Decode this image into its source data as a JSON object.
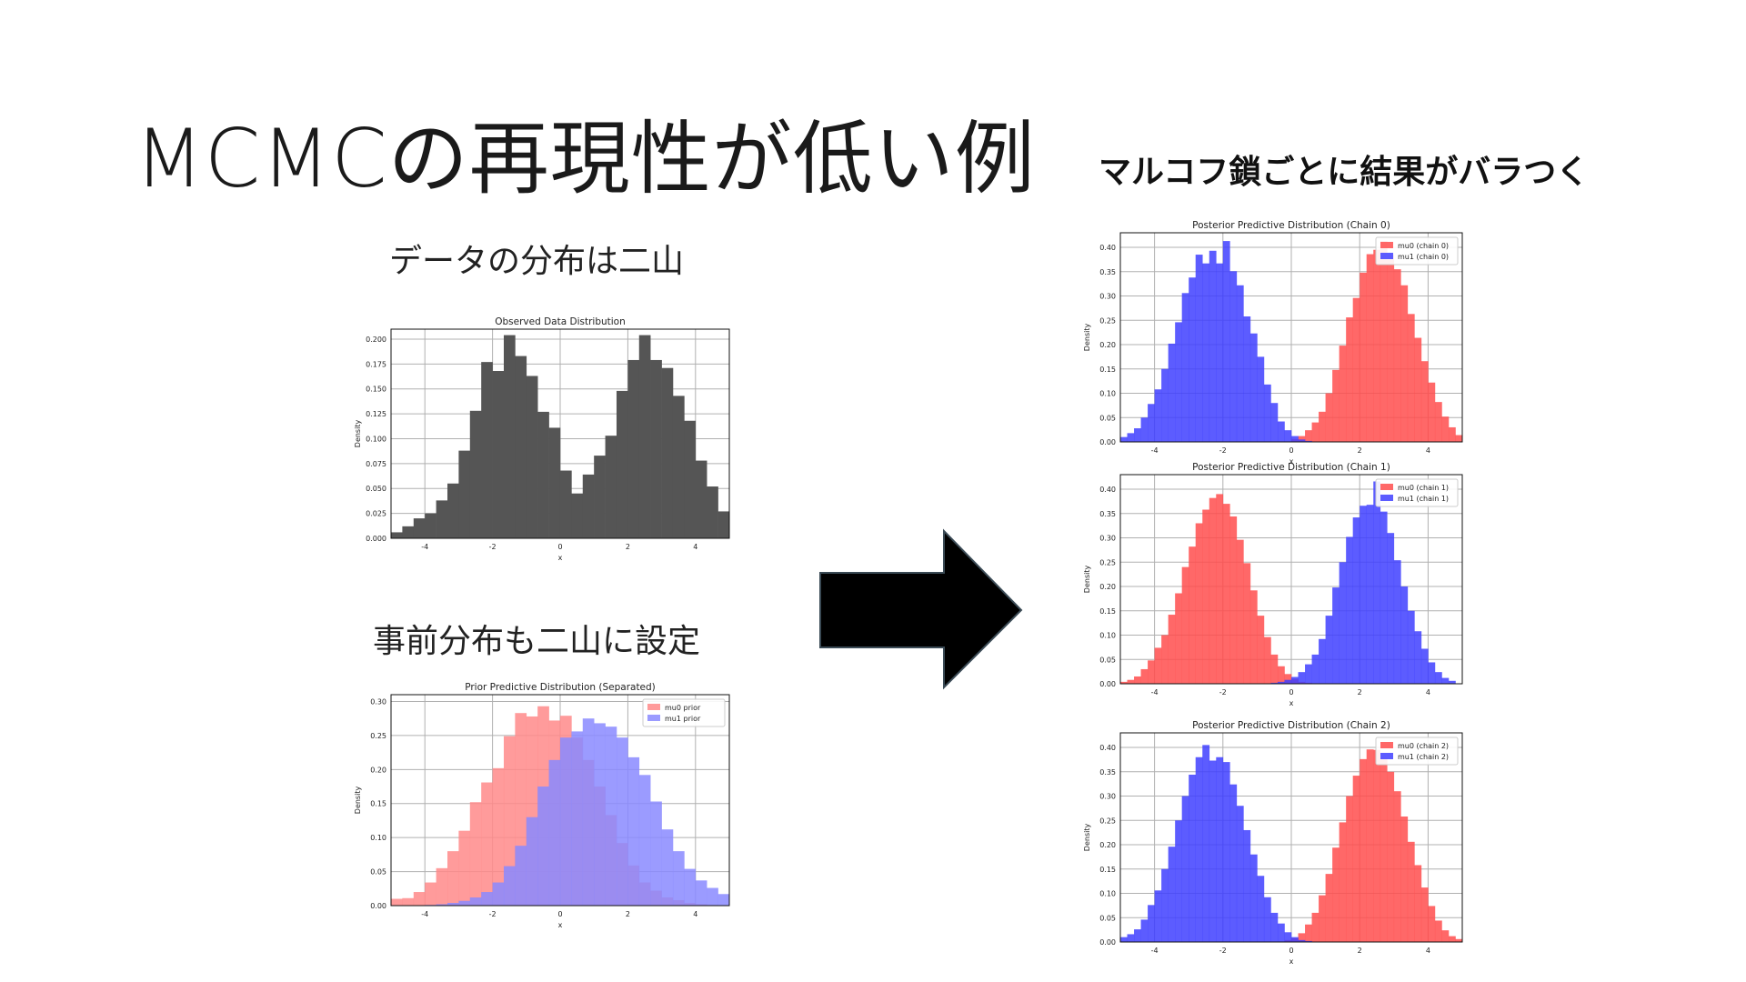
{
  "slide": {
    "title": "MCMCの再現性が低い例",
    "data_caption": "データの分布は二山",
    "prior_caption": "事前分布も二山に設定",
    "result_caption": "マルコフ鎖ごとに結果がバラつく"
  },
  "colors": {
    "data": "#555555",
    "red": "#ff4d4d",
    "blue": "#4040ff",
    "red_light": "#ff8a8a",
    "blue_light": "#8a8aff",
    "arrow": "#000000"
  },
  "chart_data": [
    {
      "id": "observed",
      "type": "bar",
      "title": "Observed Data Distribution",
      "xlabel": "x",
      "ylabel": "Density",
      "xlim": [
        -5,
        5
      ],
      "ylim": [
        0,
        0.21
      ],
      "xticks": [
        "-4",
        "-2",
        "0",
        "2",
        "4"
      ],
      "xtick_values": [
        -4,
        -2,
        0,
        2,
        4
      ],
      "yticks": [
        "0.000",
        "0.025",
        "0.050",
        "0.075",
        "0.100",
        "0.125",
        "0.150",
        "0.175",
        "0.200"
      ],
      "ytick_values": [
        0,
        0.025,
        0.05,
        0.075,
        0.1,
        0.125,
        0.15,
        0.175,
        0.2
      ],
      "bin_start": -5,
      "bin_width": 0.3333,
      "series": [
        {
          "color": "#555555",
          "opacity": 1,
          "values": [
            0.006,
            0.012,
            0.02,
            0.025,
            0.038,
            0.055,
            0.088,
            0.128,
            0.177,
            0.168,
            0.204,
            0.183,
            0.163,
            0.127,
            0.111,
            0.068,
            0.045,
            0.064,
            0.083,
            0.103,
            0.148,
            0.179,
            0.204,
            0.179,
            0.171,
            0.143,
            0.118,
            0.078,
            0.052,
            0.027,
            0.015,
            0.023
          ]
        }
      ]
    },
    {
      "id": "prior",
      "type": "bar",
      "title": "Prior Predictive Distribution (Separated)",
      "xlabel": "x",
      "ylabel": "Density",
      "xlim": [
        -5,
        5
      ],
      "ylim": [
        0,
        0.31
      ],
      "xticks": [
        "-4",
        "-2",
        "0",
        "2",
        "4"
      ],
      "xtick_values": [
        -4,
        -2,
        0,
        2,
        4
      ],
      "yticks": [
        "0.00",
        "0.05",
        "0.10",
        "0.15",
        "0.20",
        "0.25",
        "0.30"
      ],
      "ytick_values": [
        0,
        0.05,
        0.1,
        0.15,
        0.2,
        0.25,
        0.3
      ],
      "bin_start": -5,
      "bin_width": 0.3333,
      "legend": [
        "mu0 prior",
        "mu1 prior"
      ],
      "series": [
        {
          "name": "mu0 prior",
          "color": "#ff8a8a",
          "opacity": 0.85,
          "values": [
            0.01,
            0.011,
            0.02,
            0.034,
            0.055,
            0.08,
            0.11,
            0.152,
            0.181,
            0.202,
            0.249,
            0.283,
            0.278,
            0.293,
            0.272,
            0.279,
            0.247,
            0.214,
            0.175,
            0.133,
            0.092,
            0.059,
            0.034,
            0.022,
            0.012,
            0.008,
            0.004,
            0.002,
            0.001,
            0.0,
            0.0,
            0.0
          ]
        },
        {
          "name": "mu1 prior",
          "color": "#8a8aff",
          "opacity": 0.85,
          "values": [
            0.0,
            0.0,
            0.0,
            0.001,
            0.002,
            0.004,
            0.007,
            0.012,
            0.02,
            0.034,
            0.058,
            0.088,
            0.13,
            0.175,
            0.214,
            0.247,
            0.256,
            0.275,
            0.268,
            0.263,
            0.247,
            0.218,
            0.192,
            0.153,
            0.112,
            0.08,
            0.054,
            0.037,
            0.026,
            0.017,
            0.01,
            0.004
          ]
        }
      ]
    },
    {
      "id": "chain0",
      "type": "bar",
      "title": "Posterior Predictive Distribution (Chain 0)",
      "xlabel": "x",
      "ylabel": "Density",
      "xlim": [
        -5,
        5
      ],
      "ylim": [
        0,
        0.43
      ],
      "xticks": [
        "-4",
        "-2",
        "0",
        "2",
        "4"
      ],
      "xtick_values": [
        -4,
        -2,
        0,
        2,
        4
      ],
      "yticks": [
        "0.00",
        "0.05",
        "0.10",
        "0.15",
        "0.20",
        "0.25",
        "0.30",
        "0.35",
        "0.40"
      ],
      "ytick_values": [
        0,
        0.05,
        0.1,
        0.15,
        0.2,
        0.25,
        0.3,
        0.35,
        0.4
      ],
      "bin_start": -5,
      "bin_width": 0.2,
      "legend": [
        "mu0 (chain 0)",
        "mu1 (chain 0)"
      ],
      "series": [
        {
          "name": "mu0 (chain 0)",
          "color": "#ff4d4d",
          "opacity": 0.85,
          "offset": 25,
          "values": [
            0.006,
            0.012,
            0.024,
            0.04,
            0.062,
            0.1,
            0.148,
            0.198,
            0.256,
            0.296,
            0.348,
            0.386,
            0.395,
            0.413,
            0.385,
            0.355,
            0.322,
            0.263,
            0.214,
            0.166,
            0.122,
            0.082,
            0.052,
            0.03,
            0.014
          ]
        },
        {
          "name": "mu1 (chain 0)",
          "color": "#4040ff",
          "opacity": 0.85,
          "offset": 0,
          "values": [
            0.01,
            0.018,
            0.028,
            0.05,
            0.078,
            0.108,
            0.15,
            0.202,
            0.246,
            0.306,
            0.338,
            0.385,
            0.367,
            0.393,
            0.367,
            0.413,
            0.351,
            0.322,
            0.258,
            0.223,
            0.175,
            0.118,
            0.08,
            0.042,
            0.024,
            0.012,
            0.005,
            0.002
          ]
        }
      ]
    },
    {
      "id": "chain1",
      "type": "bar",
      "title": "Posterior Predictive Distribution (Chain 1)",
      "xlabel": "x",
      "ylabel": "Density",
      "xlim": [
        -5,
        5
      ],
      "ylim": [
        0,
        0.43
      ],
      "xticks": [
        "-4",
        "-2",
        "0",
        "2",
        "4"
      ],
      "xtick_values": [
        -4,
        -2,
        0,
        2,
        4
      ],
      "yticks": [
        "0.00",
        "0.05",
        "0.10",
        "0.15",
        "0.20",
        "0.25",
        "0.30",
        "0.35",
        "0.40"
      ],
      "ytick_values": [
        0,
        0.05,
        0.1,
        0.15,
        0.2,
        0.25,
        0.3,
        0.35,
        0.4
      ],
      "bin_start": -5,
      "bin_width": 0.2,
      "legend": [
        "mu0 (chain 1)",
        "mu1 (chain 1)"
      ],
      "series": [
        {
          "name": "mu0 (chain 1)",
          "color": "#ff4d4d",
          "opacity": 0.85,
          "offset": 0,
          "values": [
            0.004,
            0.008,
            0.015,
            0.03,
            0.048,
            0.074,
            0.1,
            0.142,
            0.186,
            0.24,
            0.282,
            0.33,
            0.358,
            0.382,
            0.39,
            0.37,
            0.344,
            0.296,
            0.248,
            0.192,
            0.14,
            0.096,
            0.06,
            0.036,
            0.02,
            0.01,
            0.004,
            0.002
          ]
        },
        {
          "name": "mu1 (chain 1)",
          "color": "#4040ff",
          "opacity": 0.85,
          "offset": 22,
          "values": [
            0.002,
            0.004,
            0.008,
            0.014,
            0.024,
            0.04,
            0.06,
            0.092,
            0.14,
            0.198,
            0.25,
            0.302,
            0.342,
            0.366,
            0.368,
            0.416,
            0.354,
            0.31,
            0.254,
            0.2,
            0.15,
            0.108,
            0.072,
            0.044,
            0.024,
            0.012,
            0.006
          ]
        }
      ]
    },
    {
      "id": "chain2",
      "type": "bar",
      "title": "Posterior Predictive Distribution (Chain 2)",
      "xlabel": "x",
      "ylabel": "Density",
      "xlim": [
        -5,
        5
      ],
      "ylim": [
        0,
        0.43
      ],
      "xticks": [
        "-4",
        "-2",
        "0",
        "2",
        "4"
      ],
      "xtick_values": [
        -4,
        -2,
        0,
        2,
        4
      ],
      "yticks": [
        "0.00",
        "0.05",
        "0.10",
        "0.15",
        "0.20",
        "0.25",
        "0.30",
        "0.35",
        "0.40"
      ],
      "ytick_values": [
        0,
        0.05,
        0.1,
        0.15,
        0.2,
        0.25,
        0.3,
        0.35,
        0.4
      ],
      "bin_start": -5,
      "bin_width": 0.2,
      "legend": [
        "mu0 (chain 2)",
        "mu1 (chain 2)"
      ],
      "series": [
        {
          "name": "mu0 (chain 2)",
          "color": "#ff4d4d",
          "opacity": 0.85,
          "offset": 24,
          "values": [
            0.004,
            0.008,
            0.018,
            0.036,
            0.06,
            0.096,
            0.14,
            0.194,
            0.246,
            0.3,
            0.342,
            0.376,
            0.396,
            0.395,
            0.38,
            0.35,
            0.31,
            0.258,
            0.206,
            0.158,
            0.112,
            0.074,
            0.044,
            0.024,
            0.012,
            0.006
          ]
        },
        {
          "name": "mu1 (chain 2)",
          "color": "#4040ff",
          "opacity": 0.85,
          "offset": 0,
          "values": [
            0.01,
            0.016,
            0.026,
            0.046,
            0.076,
            0.106,
            0.15,
            0.196,
            0.25,
            0.3,
            0.344,
            0.38,
            0.405,
            0.373,
            0.38,
            0.37,
            0.324,
            0.28,
            0.23,
            0.18,
            0.136,
            0.092,
            0.06,
            0.038,
            0.02,
            0.01,
            0.004,
            0.002
          ]
        }
      ]
    }
  ]
}
